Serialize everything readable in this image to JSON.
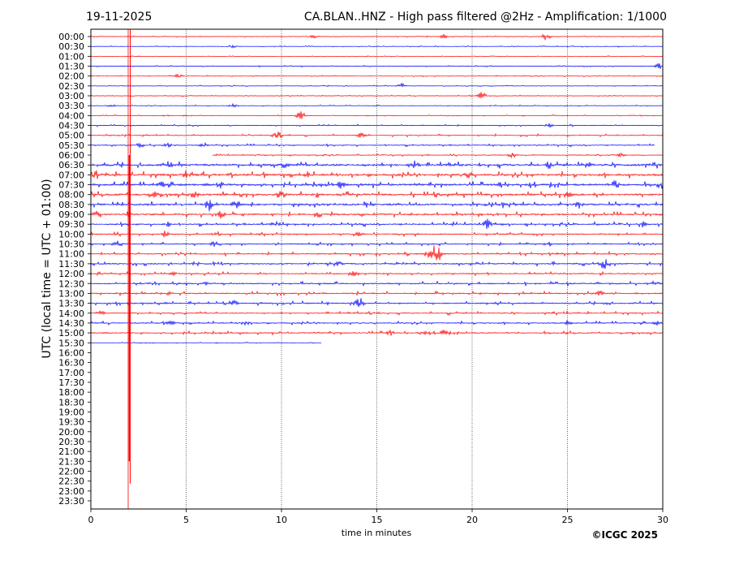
{
  "chart_data": {
    "type": "line",
    "date": "19-11-2025",
    "title": "CA.BLAN..HNZ - High pass filtered @2Hz - Amplification: 1/1000",
    "xlabel": "time in minutes",
    "ylabel": "UTC (local time = UTC + 01:00)",
    "copyright": "©ICGC 2025",
    "xlim": [
      0,
      30
    ],
    "xticks": [
      0,
      5,
      10,
      15,
      20,
      25,
      30
    ],
    "grid_x": true,
    "row_colors": [
      "#ff0000",
      "#0000ff"
    ],
    "y_labels": [
      "00:00",
      "00:30",
      "01:00",
      "01:30",
      "02:00",
      "02:30",
      "03:00",
      "03:30",
      "04:00",
      "04:30",
      "05:00",
      "05:30",
      "06:00",
      "06:30",
      "07:00",
      "07:30",
      "08:00",
      "08:30",
      "09:00",
      "09:30",
      "10:00",
      "10:30",
      "11:00",
      "11:30",
      "12:00",
      "12:30",
      "13:00",
      "13:30",
      "14:00",
      "14:30",
      "15:00",
      "15:30",
      "16:00",
      "16:30",
      "17:00",
      "17:30",
      "18:00",
      "18:30",
      "19:00",
      "19:30",
      "20:00",
      "20:30",
      "21:00",
      "21:30",
      "22:00",
      "22:30",
      "23:00",
      "23:30"
    ],
    "recorded_rows": [
      {
        "label": "00:00",
        "start": 0,
        "end": 30,
        "noise": 0.5,
        "events": [
          [
            11.7,
            3
          ],
          [
            23.9,
            6
          ],
          [
            18.5,
            3
          ]
        ]
      },
      {
        "label": "00:30",
        "start": 0,
        "end": 30,
        "noise": 0.5,
        "events": [
          [
            7.4,
            3
          ]
        ]
      },
      {
        "label": "01:00",
        "start": 0,
        "end": 30,
        "noise": 0.4,
        "events": []
      },
      {
        "label": "01:30",
        "start": 0,
        "end": 30,
        "noise": 0.6,
        "events": [
          [
            29.8,
            4
          ]
        ]
      },
      {
        "label": "02:00",
        "start": 0,
        "end": 30,
        "noise": 0.5,
        "events": [
          [
            4.6,
            3
          ]
        ]
      },
      {
        "label": "02:30",
        "start": 0,
        "end": 30,
        "noise": 0.6,
        "events": [
          [
            16.3,
            4
          ]
        ]
      },
      {
        "label": "03:00",
        "start": 0,
        "end": 30,
        "noise": 0.5,
        "events": [
          [
            20.5,
            6
          ]
        ]
      },
      {
        "label": "03:30",
        "start": 0,
        "end": 30,
        "noise": 0.5,
        "events": [
          [
            7.4,
            3
          ],
          [
            1.1,
            3
          ]
        ]
      },
      {
        "label": "04:00",
        "start": 0,
        "end": 30,
        "noise": 0.5,
        "events": [
          [
            11.0,
            6
          ]
        ]
      },
      {
        "label": "04:30",
        "start": 0,
        "end": 30,
        "noise": 0.8,
        "events": [
          [
            24.0,
            3
          ]
        ]
      },
      {
        "label": "05:00",
        "start": 0,
        "end": 30,
        "noise": 1.0,
        "events": [
          [
            9.8,
            6
          ],
          [
            14.2,
            4
          ]
        ]
      },
      {
        "label": "05:30",
        "start": 0,
        "end": 29.6,
        "noise": 1.0,
        "events": [
          [
            2.6,
            4
          ],
          [
            4.0,
            4
          ],
          [
            5.9,
            4
          ]
        ]
      },
      {
        "label": "06:00",
        "start": 6.4,
        "end": 30,
        "noise": 0.8,
        "events": [
          [
            22.1,
            4
          ],
          [
            27.8,
            3
          ]
        ]
      },
      {
        "label": "06:30",
        "start": 0,
        "end": 30,
        "noise": 2.6,
        "events": [
          [
            4.1,
            6
          ],
          [
            10.2,
            5
          ],
          [
            17.0,
            7
          ],
          [
            24.0,
            5
          ],
          [
            26.1,
            6
          ]
        ]
      },
      {
        "label": "07:00",
        "start": 0,
        "end": 30,
        "noise": 2.6,
        "events": [
          [
            0.3,
            6
          ],
          [
            5.0,
            6
          ],
          [
            7.3,
            6
          ],
          [
            11.4,
            5
          ],
          [
            19.8,
            6
          ]
        ]
      },
      {
        "label": "07:30",
        "start": 0,
        "end": 30,
        "noise": 2.4,
        "events": [
          [
            3.7,
            6
          ],
          [
            6.8,
            6
          ],
          [
            13.1,
            6
          ],
          [
            21.5,
            5
          ],
          [
            27.5,
            7
          ],
          [
            29.9,
            6
          ]
        ]
      },
      {
        "label": "08:00",
        "start": 0,
        "end": 30,
        "noise": 2.4,
        "events": [
          [
            5.4,
            7
          ],
          [
            10.0,
            6
          ],
          [
            25.1,
            6
          ],
          [
            3.3,
            5
          ]
        ]
      },
      {
        "label": "08:30",
        "start": 0,
        "end": 30,
        "noise": 2.2,
        "events": [
          [
            6.2,
            9
          ],
          [
            7.6,
            6
          ],
          [
            14.6,
            5
          ],
          [
            25.6,
            6
          ],
          [
            21.6,
            5
          ]
        ]
      },
      {
        "label": "09:00",
        "start": 0,
        "end": 30,
        "noise": 2.0,
        "events": [
          [
            0.3,
            5
          ],
          [
            6.8,
            7
          ],
          [
            12.0,
            5
          ],
          [
            2.0,
            5
          ]
        ]
      },
      {
        "label": "09:30",
        "start": 0,
        "end": 30,
        "noise": 1.6,
        "events": [
          [
            4.0,
            5
          ],
          [
            9.7,
            5
          ],
          [
            20.8,
            7
          ],
          [
            28.9,
            5
          ]
        ]
      },
      {
        "label": "10:00",
        "start": 0,
        "end": 30,
        "noise": 1.6,
        "events": [
          [
            3.9,
            5
          ],
          [
            6.6,
            5
          ],
          [
            14.1,
            4
          ]
        ]
      },
      {
        "label": "10:30",
        "start": 0,
        "end": 30,
        "noise": 1.3,
        "events": [
          [
            1.4,
            4
          ],
          [
            6.5,
            4
          ],
          [
            24.0,
            4
          ]
        ]
      },
      {
        "label": "11:00",
        "start": 0,
        "end": 30,
        "noise": 1.5,
        "events": [
          [
            18.1,
            18
          ],
          [
            17.7,
            6
          ]
        ]
      },
      {
        "label": "11:30",
        "start": 0,
        "end": 30,
        "noise": 1.5,
        "events": [
          [
            13.0,
            4
          ],
          [
            27.0,
            9
          ],
          [
            26.8,
            6
          ]
        ]
      },
      {
        "label": "12:00",
        "start": 0,
        "end": 30,
        "noise": 1.3,
        "events": [
          [
            13.8,
            4
          ],
          [
            4.3,
            3
          ]
        ]
      },
      {
        "label": "12:30",
        "start": 0,
        "end": 30,
        "noise": 1.5,
        "events": [
          [
            29.6,
            4
          ],
          [
            6.1,
            3
          ]
        ]
      },
      {
        "label": "13:00",
        "start": 0,
        "end": 30,
        "noise": 1.5,
        "events": [
          [
            4.1,
            3
          ],
          [
            26.7,
            4
          ]
        ]
      },
      {
        "label": "13:30",
        "start": 0,
        "end": 30,
        "noise": 1.5,
        "events": [
          [
            14.1,
            9
          ],
          [
            7.5,
            4
          ],
          [
            27.1,
            4
          ]
        ]
      },
      {
        "label": "14:00",
        "start": 0,
        "end": 30,
        "noise": 1.3,
        "events": [
          [
            0.5,
            4
          ],
          [
            14.7,
            3
          ]
        ]
      },
      {
        "label": "14:30",
        "start": 0,
        "end": 30,
        "noise": 1.3,
        "events": [
          [
            4.2,
            4
          ],
          [
            8.1,
            4
          ],
          [
            25.0,
            4
          ],
          [
            29.7,
            3
          ]
        ]
      },
      {
        "label": "15:00",
        "start": 0,
        "end": 30,
        "noise": 1.3,
        "events": [
          [
            15.7,
            4
          ],
          [
            17.4,
            4
          ],
          [
            18.5,
            5
          ]
        ]
      },
      {
        "label": "15:30",
        "start": 0,
        "end": 12.1,
        "noise": 0.4,
        "events": []
      }
    ],
    "spike": {
      "minute": 2.0,
      "from_label": "00:00",
      "to_label": "22:30"
    }
  }
}
